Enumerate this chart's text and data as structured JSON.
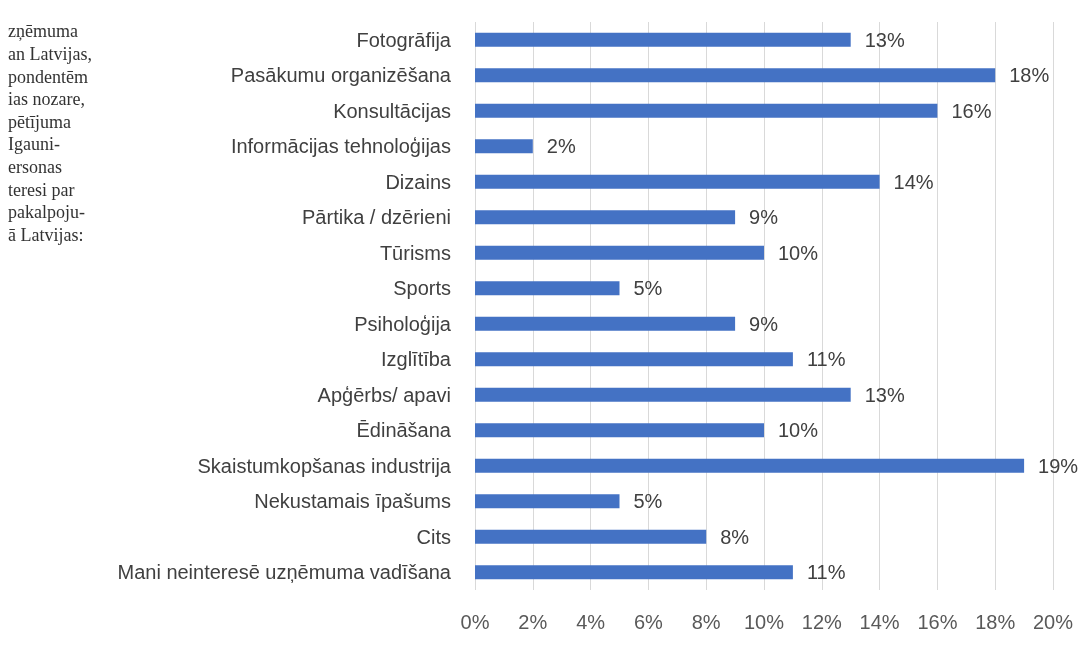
{
  "chart_data": {
    "type": "bar",
    "orientation": "horizontal",
    "categories": [
      "Fotogrāfija",
      "Pasākumu organizēšana",
      "Konsultācijas",
      "Informācijas tehnoloģijas",
      "Dizains",
      "Pārtika / dzērieni",
      "Tūrisms",
      "Sports",
      "Psiholoģija",
      "Izglītība",
      "Apģērbs/ apavi",
      "Ēdināšana",
      "Skaistumkopšanas industrija",
      "Nekustamais īpašums",
      "Cits",
      "Mani neinteresē uzņēmuma vadīšana"
    ],
    "values": [
      13,
      18,
      16,
      2,
      14,
      9,
      10,
      5,
      9,
      11,
      13,
      10,
      19,
      5,
      8,
      11
    ],
    "value_labels": [
      "13%",
      "18%",
      "16%",
      "2%",
      "14%",
      "9%",
      "10%",
      "5%",
      "9%",
      "11%",
      "13%",
      "10%",
      "19%",
      "5%",
      "8%",
      "11%"
    ],
    "color": "#4472c4",
    "xlim": [
      0,
      20
    ],
    "xticks": [
      {
        "value": 0,
        "label": "0%"
      },
      {
        "value": 2,
        "label": "2%"
      },
      {
        "value": 4,
        "label": "4%"
      },
      {
        "value": 6,
        "label": "6%"
      },
      {
        "value": 8,
        "label": "8%"
      },
      {
        "value": 10,
        "label": "10%"
      },
      {
        "value": 12,
        "label": "12%"
      },
      {
        "value": 14,
        "label": "14%"
      },
      {
        "value": 16,
        "label": "16%"
      },
      {
        "value": 18,
        "label": "18%"
      },
      {
        "value": 20,
        "label": "20%"
      }
    ],
    "grid": "x",
    "annotations": [
      "zņēmuma\nan Latvijas,\npondentēm\nias nozare,\npētījuma\nIgauni-\nersonas\nteresi par\npakalpoju-\nā Latvijas:"
    ]
  }
}
